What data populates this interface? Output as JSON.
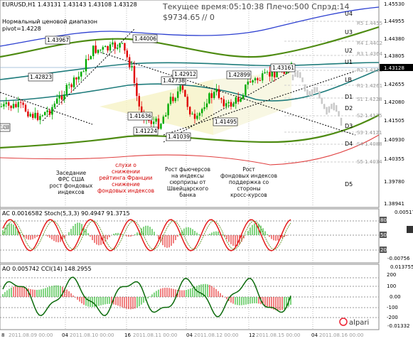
{
  "header": {
    "symbol_line": "EURUSD,H1  1.43131 1.43143 1.43108 1.43128",
    "channel_label": "Нормальный ценовой диапазон",
    "channel_sub": "pivot=1.4228",
    "server_time": "Текущее время:05:10:38 Плечо:500 Спрэд:14",
    "equity": "$9734.65",
    "equity_extra": "// 0"
  },
  "price_axis": {
    "labels": [
      "1.45530",
      "1.44955",
      "1.44380",
      "1.43805",
      "1.43128",
      "1.42655",
      "1.42080",
      "1.41505",
      "1.40930",
      "1.40355",
      "1.39780",
      "1.38941"
    ],
    "current_price": "1.43128"
  },
  "pivot_levels": [
    {
      "name": "U4",
      "label": "U4"
    },
    {
      "name": "U3",
      "label": "U3"
    },
    {
      "name": "U2",
      "label": "U2"
    },
    {
      "name": "U1",
      "label": "U1"
    },
    {
      "name": "LB",
      "label": "LB"
    },
    {
      "name": "D1",
      "label": "D1"
    },
    {
      "name": "D2",
      "label": "D2"
    },
    {
      "name": "D3",
      "label": "D3"
    },
    {
      "name": "D4",
      "label": "D4"
    },
    {
      "name": "D5",
      "label": "D5"
    }
  ],
  "sr_levels": [
    {
      "label": "R5 1.4455"
    },
    {
      "label": "R4 1.4402"
    },
    {
      "label": "R3 1.4364"
    },
    {
      "label": "R2 1.4318"
    },
    {
      "label": "R1 1.4261"
    },
    {
      "label": "S1 1.4228"
    },
    {
      "label": "S2 1.4175"
    },
    {
      "label": "S3 1.4121"
    },
    {
      "label": "S4 1.4088"
    },
    {
      "label": "S5 1.4034"
    }
  ],
  "price_boxes": [
    "1.43967",
    "1.44006",
    "1.42823",
    "1.42738",
    "1.42912",
    "1.42899",
    "1.43161",
    "1.41636",
    "1.41224",
    "1.41039",
    "1.41495",
    "1.41508"
  ],
  "annotations": [
    {
      "text": [
        "Заседание",
        "ФРС США",
        "рост фондовых",
        "индексов"
      ],
      "color": "black"
    },
    {
      "text": [
        "слухи о",
        "снижении",
        "рейтинга Франции",
        "снижение",
        "фондовых индексов"
      ],
      "color": "red"
    },
    {
      "text": [
        "Рост фьючерсов",
        "на индексы",
        "сюрпризы от",
        "Швейцарского",
        "банка"
      ],
      "color": "black"
    },
    {
      "text": [
        "Рост",
        "фондовых индексов",
        "поддержка со",
        "стороны",
        "кросс-курсов"
      ],
      "color": "black"
    }
  ],
  "stoch_panel": {
    "title": "AC 0.0016582  Stoch(5,3,3) 90.4947 91.3715",
    "axis": [
      "0.00517",
      "80",
      "50",
      "20",
      "-0.00756"
    ]
  },
  "cci_panel": {
    "title": "AO 0.005742  CCI(14) 148.2955",
    "axis": [
      "0.013755",
      "200",
      "100",
      "0.00",
      "-100",
      "-200",
      "-0.01332"
    ]
  },
  "time_axis": [
    "8",
    "2011.08.09 00:00",
    "04",
    "2011.08.10 00:00",
    "16",
    "2011.08.11 00:00",
    "04",
    "2011.08.12 00:00",
    "12",
    "2011.08.15 00:00",
    "04",
    "2011.08.16 00:00"
  ],
  "brand": "alpari",
  "colors": {
    "up_candle": "#00aa00",
    "down_candle": "#e00000",
    "upper_band": "#2c3fd0",
    "green_band": "#4e8b12",
    "teal": "#1f7c7c",
    "red_band": "#e04040",
    "osc": "#e31b1b",
    "ao_green": "#0b6a0b"
  }
}
